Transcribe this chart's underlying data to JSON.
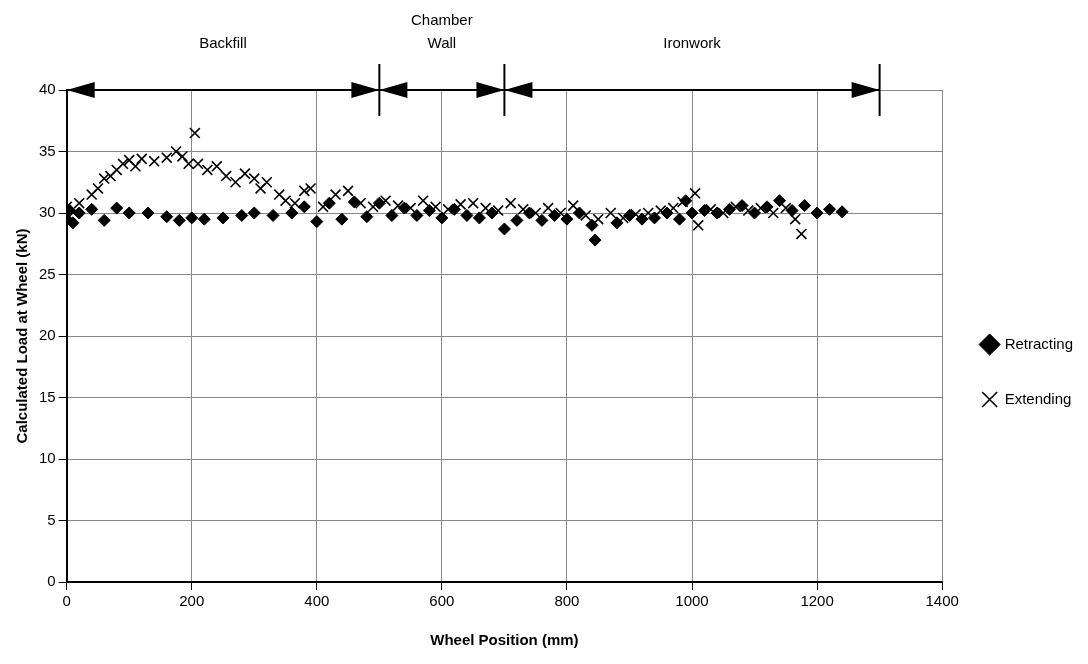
{
  "chart_data": {
    "type": "scatter",
    "xlabel": "Wheel Position (mm)",
    "ylabel": "Calculated Load at Wheel (kN)",
    "xlim": [
      0,
      1400
    ],
    "xticks": [
      0,
      200,
      400,
      600,
      800,
      1000,
      1200,
      1400
    ],
    "ylim": [
      0,
      40
    ],
    "yticks": [
      0,
      5,
      10,
      15,
      20,
      25,
      30,
      35,
      40
    ],
    "grid": true,
    "legend": "right",
    "annotations": [
      "Backfill",
      "Chamber Wall",
      "Ironwork"
    ],
    "series": [
      {
        "name": "Retracting",
        "color": "#000000",
        "marker": "diamond",
        "x": [
          0,
          5,
          10,
          20,
          40,
          60,
          80,
          100,
          130,
          160,
          180,
          200,
          220,
          250,
          280,
          300,
          330,
          360,
          380,
          400,
          420,
          440,
          460,
          480,
          500,
          520,
          540,
          560,
          580,
          600,
          620,
          640,
          660,
          680,
          700,
          720,
          740,
          760,
          780,
          800,
          820,
          840,
          845,
          880,
          900,
          920,
          940,
          960,
          980,
          990,
          1000,
          1020,
          1040,
          1060,
          1080,
          1100,
          1120,
          1140,
          1160,
          1180,
          1200,
          1220,
          1240
        ],
        "values": [
          29.5,
          30.2,
          29.2,
          30.0,
          30.3,
          29.4,
          30.4,
          30.0,
          30.0,
          29.7,
          29.4,
          29.6,
          29.5,
          29.6,
          29.8,
          30.0,
          29.8,
          30.0,
          30.5,
          29.3,
          30.8,
          29.5,
          30.9,
          29.7,
          30.8,
          29.8,
          30.4,
          29.8,
          30.2,
          29.6,
          30.3,
          29.8,
          29.6,
          30.0,
          28.7,
          29.4,
          30.0,
          29.4,
          29.8,
          29.5,
          30.0,
          29.0,
          27.8,
          29.2,
          29.8,
          29.5,
          29.6,
          30.0,
          29.5,
          31.0,
          30.0,
          30.2,
          30.0,
          30.3,
          30.6,
          30.0,
          30.5,
          31.0,
          30.2,
          30.6,
          30.0,
          30.3,
          30.1
        ]
      },
      {
        "name": "Extending",
        "color": "#000000",
        "marker": "cross",
        "x": [
          0,
          20,
          40,
          50,
          60,
          70,
          80,
          90,
          100,
          110,
          120,
          140,
          160,
          175,
          185,
          195,
          205,
          210,
          225,
          240,
          255,
          270,
          285,
          300,
          310,
          320,
          340,
          350,
          365,
          380,
          390,
          410,
          430,
          450,
          470,
          490,
          510,
          530,
          550,
          570,
          590,
          610,
          630,
          650,
          670,
          690,
          710,
          730,
          750,
          770,
          790,
          810,
          830,
          850,
          870,
          890,
          910,
          930,
          950,
          970,
          985,
          1005,
          1010,
          1030,
          1050,
          1070,
          1090,
          1110,
          1130,
          1150,
          1165,
          1175
        ],
        "values": [
          30.5,
          30.8,
          31.5,
          32.0,
          32.8,
          33.0,
          33.5,
          34.0,
          34.3,
          33.8,
          34.4,
          34.2,
          34.5,
          35.0,
          34.6,
          34.0,
          36.5,
          34.0,
          33.5,
          33.8,
          33.0,
          32.5,
          33.2,
          32.8,
          32.0,
          32.5,
          31.5,
          31.0,
          30.8,
          31.8,
          32.0,
          30.5,
          31.5,
          31.8,
          30.8,
          30.5,
          31.0,
          30.6,
          30.4,
          31.0,
          30.5,
          30.3,
          30.7,
          30.8,
          30.4,
          30.2,
          30.8,
          30.3,
          30.0,
          30.4,
          30.0,
          30.6,
          29.8,
          29.5,
          30.0,
          29.6,
          29.9,
          30.0,
          30.2,
          30.4,
          30.9,
          31.6,
          29.0,
          30.3,
          30.0,
          30.5,
          30.2,
          30.4,
          30.0,
          30.4,
          29.5,
          28.3
        ]
      }
    ]
  }
}
